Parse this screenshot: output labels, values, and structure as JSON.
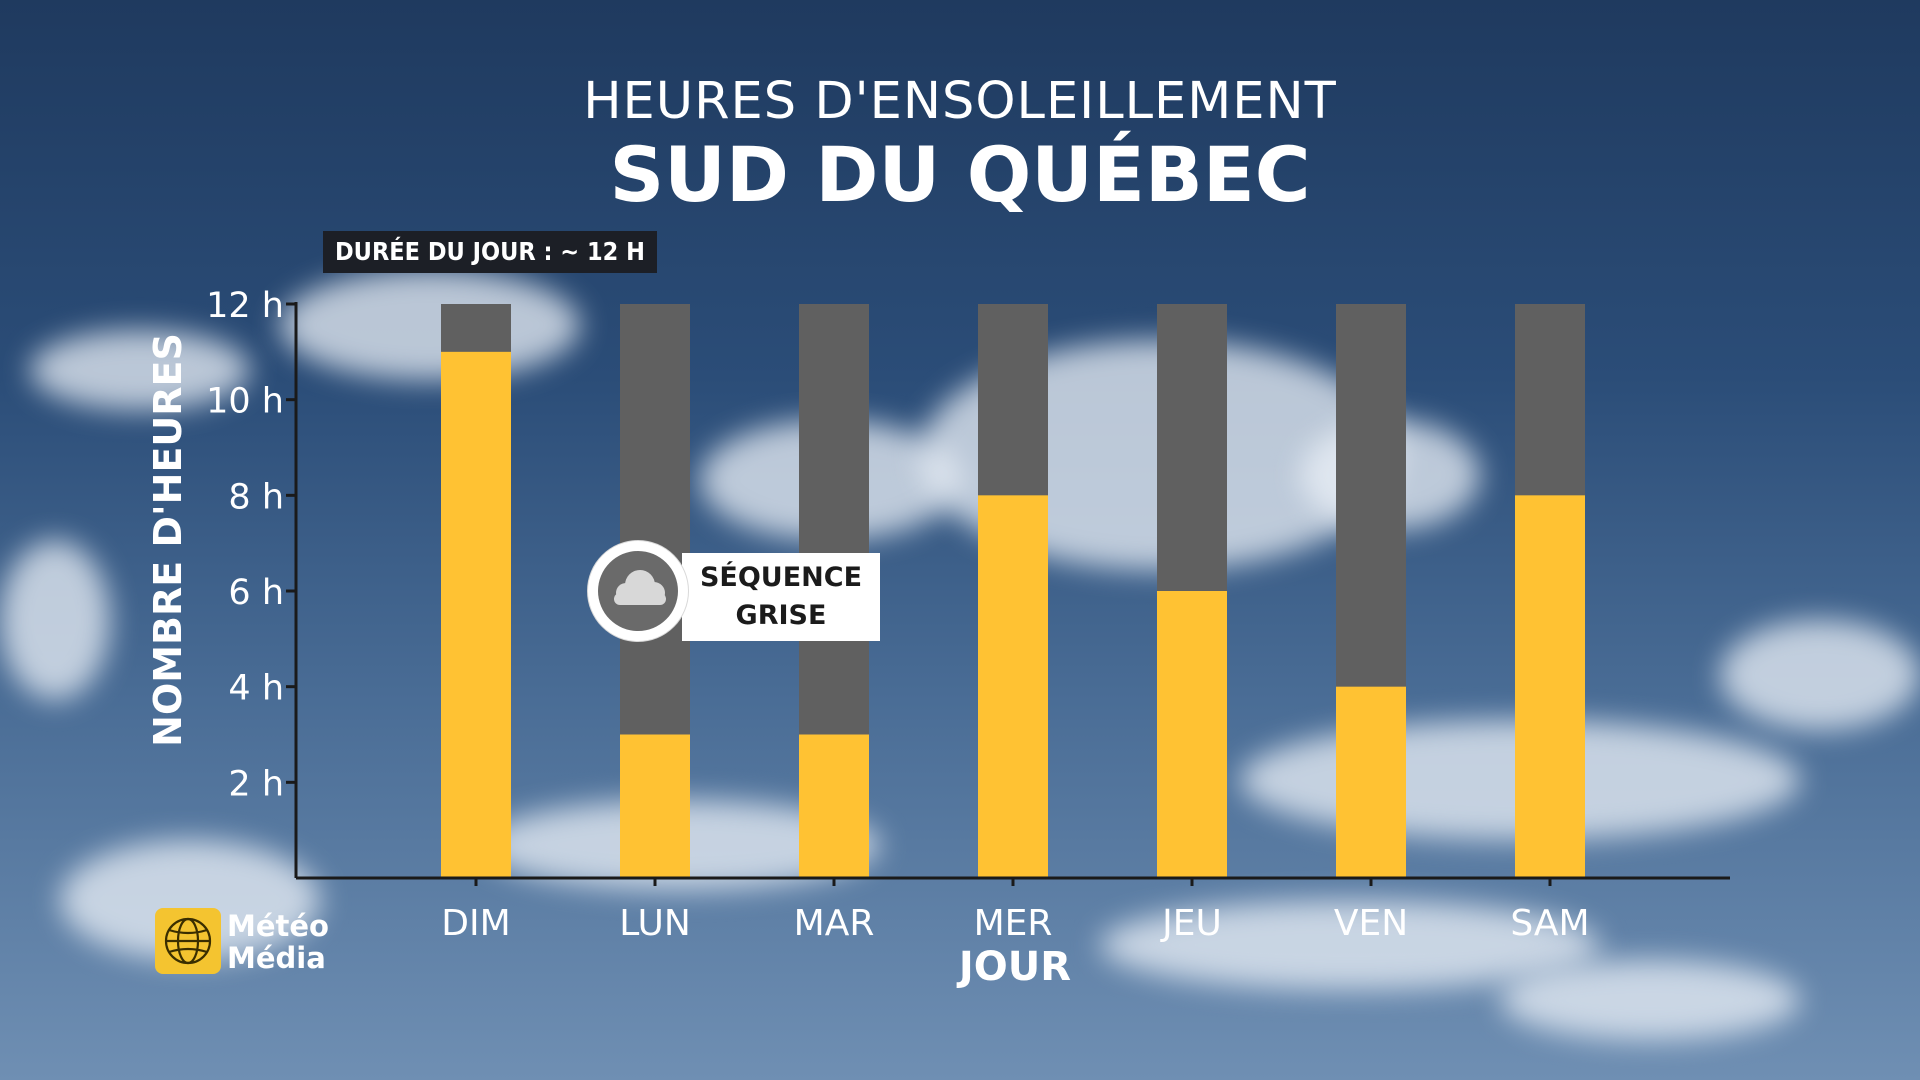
{
  "header": {
    "title": "HEURES D'ENSOLEILLEMENT",
    "subtitle": "SUD DU QUÉBEC"
  },
  "day_length_label": "DURÉE DU JOUR : ~ 12 H",
  "annotation": {
    "line1": "SÉQUENCE",
    "line2": "GRISE",
    "icon": "cloud-icon"
  },
  "logo": {
    "line1": "Météo",
    "line2": "Média",
    "icon": "sun-globe-icon"
  },
  "colors": {
    "sun": "#FFC233",
    "total": "#606060",
    "axis": "#1a1a1a",
    "text": "#ffffff"
  },
  "chart_data": {
    "type": "bar",
    "stacked": "overlay",
    "title": "HEURES D'ENSOLEILLEMENT",
    "subtitle": "SUD DU QUÉBEC",
    "xlabel": "JOUR",
    "ylabel": "NOMBRE D'HEURES",
    "categories": [
      "DIM",
      "LUN",
      "MAR",
      "MER",
      "JEU",
      "VEN",
      "SAM"
    ],
    "series": [
      {
        "values": [
          12,
          12,
          12,
          12,
          12,
          12,
          12
        ]
      },
      {
        "values": [
          11,
          3,
          3,
          8,
          6,
          4,
          8
        ]
      }
    ],
    "ylim": [
      0,
      12
    ],
    "yticks": [
      2,
      4,
      6,
      8,
      10,
      12
    ],
    "ytick_labels": [
      "2 h",
      "4 h",
      "6 h",
      "8 h",
      "10 h",
      "12 h"
    ],
    "grid": false
  }
}
